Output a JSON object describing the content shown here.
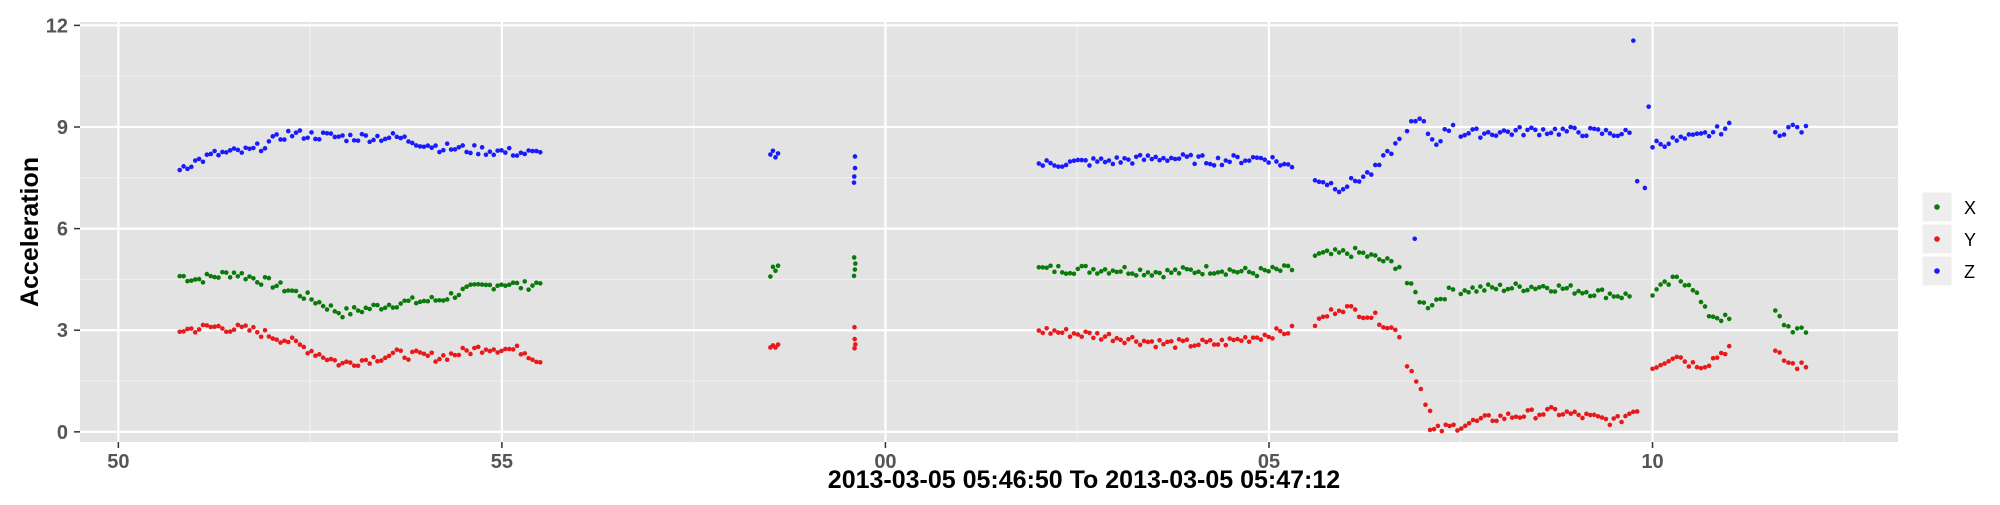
{
  "chart_data": {
    "type": "scatter",
    "title": "",
    "xlabel": "2013-03-05 05:46:50 To 2013-03-05 05:47:12",
    "ylabel": "Acceleration",
    "x_unit": "seconds",
    "x_range": [
      "05:46:49.5",
      "05:47:13.2"
    ],
    "y_range": [
      -0.3,
      12.1
    ],
    "x_ticks": [
      {
        "time": "05:46:50",
        "label": "50"
      },
      {
        "time": "05:46:55",
        "label": "55"
      },
      {
        "time": "05:47:00",
        "label": "00"
      },
      {
        "time": "05:47:05",
        "label": "05"
      },
      {
        "time": "05:47:10",
        "label": "10"
      }
    ],
    "y_ticks": [
      0,
      3,
      6,
      9,
      12
    ],
    "grid": true,
    "legend_position": "right",
    "colors": {
      "panel": "#e3e3e3",
      "grid_major": "#ffffff",
      "grid_minor": "#f0f0f0",
      "axis_text": "#555555",
      "title_text": "#000000"
    },
    "series": [
      {
        "name": "X",
        "color": "#0a7a0a",
        "segments": [
          {
            "start": "05:46:50.8",
            "end": "05:46:55.5",
            "knots": [
              [
                0,
                4.6
              ],
              [
                0.05,
                4.5
              ],
              [
                0.15,
                4.7
              ],
              [
                0.25,
                4.4
              ],
              [
                0.35,
                4.0
              ],
              [
                0.45,
                3.5
              ],
              [
                0.6,
                3.8
              ],
              [
                0.72,
                3.9
              ],
              [
                0.8,
                4.2
              ],
              [
                0.9,
                4.4
              ],
              [
                0.95,
                4.3
              ],
              [
                1.0,
                4.4
              ]
            ]
          },
          {
            "start": "05:46:58.5",
            "end": "05:46:58.6",
            "knots": [
              [
                0,
                4.7
              ],
              [
                1,
                4.8
              ]
            ]
          },
          {
            "start": "05:46:59.6",
            "end": "05:46:59.6",
            "knots": [
              [
                0,
                4.8
              ],
              [
                0.5,
                5.2
              ],
              [
                1,
                4.7
              ]
            ]
          },
          {
            "start": "05:47:02.0",
            "end": "05:47:05.3",
            "knots": [
              [
                0,
                4.8
              ],
              [
                0.3,
                4.8
              ],
              [
                0.5,
                4.7
              ],
              [
                0.7,
                4.8
              ],
              [
                0.85,
                4.7
              ],
              [
                1.0,
                4.8
              ]
            ]
          },
          {
            "start": "05:47:05.6",
            "end": "05:47:06.7",
            "knots": [
              [
                0,
                5.2
              ],
              [
                0.5,
                5.3
              ],
              [
                1.0,
                4.9
              ]
            ]
          },
          {
            "start": "05:47:06.8",
            "end": "05:47:07.4",
            "knots": [
              [
                0,
                4.4
              ],
              [
                0.4,
                3.7
              ],
              [
                1.0,
                4.2
              ]
            ]
          },
          {
            "start": "05:47:07.5",
            "end": "05:47:09.7",
            "knots": [
              [
                0,
                4.2
              ],
              [
                0.5,
                4.3
              ],
              [
                1.0,
                4.0
              ]
            ]
          },
          {
            "start": "05:47:10.0",
            "end": "05:47:11.0",
            "knots": [
              [
                0,
                4.1
              ],
              [
                0.3,
                4.5
              ],
              [
                0.5,
                4.4
              ],
              [
                0.7,
                3.5
              ],
              [
                1.0,
                3.3
              ]
            ]
          },
          {
            "start": "05:47:11.6",
            "end": "05:47:12.0",
            "knots": [
              [
                0,
                3.5
              ],
              [
                0.4,
                3.1
              ],
              [
                1.0,
                2.9
              ]
            ]
          }
        ]
      },
      {
        "name": "Y",
        "color": "#e8191b",
        "segments": [
          {
            "start": "05:46:50.8",
            "end": "05:46:55.5",
            "knots": [
              [
                0,
                3.0
              ],
              [
                0.1,
                3.1
              ],
              [
                0.2,
                3.0
              ],
              [
                0.3,
                2.7
              ],
              [
                0.45,
                2.0
              ],
              [
                0.6,
                2.3
              ],
              [
                0.72,
                2.2
              ],
              [
                0.85,
                2.5
              ],
              [
                0.95,
                2.4
              ],
              [
                1.0,
                2.1
              ]
            ]
          },
          {
            "start": "05:46:58.5",
            "end": "05:46:58.6",
            "knots": [
              [
                0,
                2.6
              ],
              [
                1,
                2.6
              ]
            ]
          },
          {
            "start": "05:46:59.6",
            "end": "05:46:59.6",
            "knots": [
              [
                0,
                3.0
              ],
              [
                0.5,
                2.6
              ],
              [
                1,
                2.4
              ]
            ]
          },
          {
            "start": "05:47:02.0",
            "end": "05:47:05.3",
            "knots": [
              [
                0,
                3.0
              ],
              [
                0.3,
                2.8
              ],
              [
                0.5,
                2.6
              ],
              [
                0.7,
                2.6
              ],
              [
                1.0,
                3.0
              ]
            ]
          },
          {
            "start": "05:47:05.6",
            "end": "05:47:06.7",
            "knots": [
              [
                0,
                3.2
              ],
              [
                0.3,
                3.7
              ],
              [
                0.7,
                3.4
              ],
              [
                1.0,
                2.9
              ]
            ]
          },
          {
            "start": "05:47:06.8",
            "end": "05:47:07.1",
            "knots": [
              [
                0,
                2.0
              ],
              [
                0.4,
                1.6
              ],
              [
                1.0,
                0.6
              ]
            ]
          },
          {
            "start": "05:47:07.1",
            "end": "05:47:09.8",
            "knots": [
              [
                0,
                0.0
              ],
              [
                0.3,
                0.4
              ],
              [
                0.6,
                0.6
              ],
              [
                0.9,
                0.3
              ],
              [
                1.0,
                0.7
              ]
            ]
          },
          {
            "start": "05:47:10.0",
            "end": "05:47:11.0",
            "knots": [
              [
                0,
                1.9
              ],
              [
                0.3,
                2.3
              ],
              [
                0.5,
                2.0
              ],
              [
                0.7,
                2.0
              ],
              [
                1.0,
                2.5
              ]
            ]
          },
          {
            "start": "05:47:11.6",
            "end": "05:47:12.0",
            "knots": [
              [
                0,
                2.3
              ],
              [
                0.5,
                2.0
              ],
              [
                1.0,
                1.9
              ]
            ]
          }
        ]
      },
      {
        "name": "Z",
        "color": "#1a1aff",
        "segments": [
          {
            "start": "05:46:50.8",
            "end": "05:46:55.5",
            "knots": [
              [
                0,
                7.8
              ],
              [
                0.1,
                8.2
              ],
              [
                0.2,
                8.3
              ],
              [
                0.3,
                8.8
              ],
              [
                0.45,
                8.7
              ],
              [
                0.6,
                8.7
              ],
              [
                0.72,
                8.4
              ],
              [
                0.85,
                8.3
              ],
              [
                1.0,
                8.2
              ]
            ]
          },
          {
            "start": "05:46:58.5",
            "end": "05:46:58.6",
            "knots": [
              [
                0,
                8.3
              ],
              [
                1,
                8.1
              ]
            ]
          },
          {
            "start": "05:46:59.6",
            "end": "05:46:59.6",
            "knots": [
              [
                0,
                8.0
              ],
              [
                0.5,
                7.5
              ],
              [
                1,
                7.4
              ]
            ]
          },
          {
            "start": "05:47:02.0",
            "end": "05:47:05.3",
            "knots": [
              [
                0,
                7.9
              ],
              [
                0.3,
                8.0
              ],
              [
                0.5,
                8.1
              ],
              [
                0.7,
                8.0
              ],
              [
                0.9,
                8.1
              ],
              [
                1.0,
                7.8
              ]
            ]
          },
          {
            "start": "05:47:05.6",
            "end": "05:47:06.7",
            "knots": [
              [
                0,
                7.5
              ],
              [
                0.3,
                7.2
              ],
              [
                0.7,
                7.7
              ],
              [
                1.0,
                8.6
              ]
            ]
          },
          {
            "start": "05:47:06.8",
            "end": "05:47:07.4",
            "knots": [
              [
                0,
                9.0
              ],
              [
                0.3,
                9.2
              ],
              [
                0.6,
                8.5
              ],
              [
                1.0,
                9.1
              ]
            ]
          },
          {
            "start": "05:47:07.5",
            "end": "05:47:09.7",
            "knots": [
              [
                0,
                8.8
              ],
              [
                0.5,
                8.9
              ],
              [
                1.0,
                8.8
              ]
            ]
          },
          {
            "start": "05:47:10.0",
            "end": "05:47:11.0",
            "knots": [
              [
                0,
                8.5
              ],
              [
                0.3,
                8.6
              ],
              [
                0.6,
                8.7
              ],
              [
                1.0,
                9.0
              ]
            ]
          },
          {
            "start": "05:47:11.6",
            "end": "05:47:12.0",
            "knots": [
              [
                0,
                8.8
              ],
              [
                0.5,
                9.0
              ],
              [
                1.0,
                8.9
              ]
            ]
          }
        ],
        "extra_points": [
          {
            "time": "05:47:09.75",
            "value": 11.55
          },
          {
            "time": "05:47:09.8",
            "value": 7.4
          },
          {
            "time": "05:47:09.9",
            "value": 7.2
          },
          {
            "time": "05:47:09.95",
            "value": 9.6
          },
          {
            "time": "05:47:06.9",
            "value": 5.7
          }
        ]
      }
    ]
  }
}
